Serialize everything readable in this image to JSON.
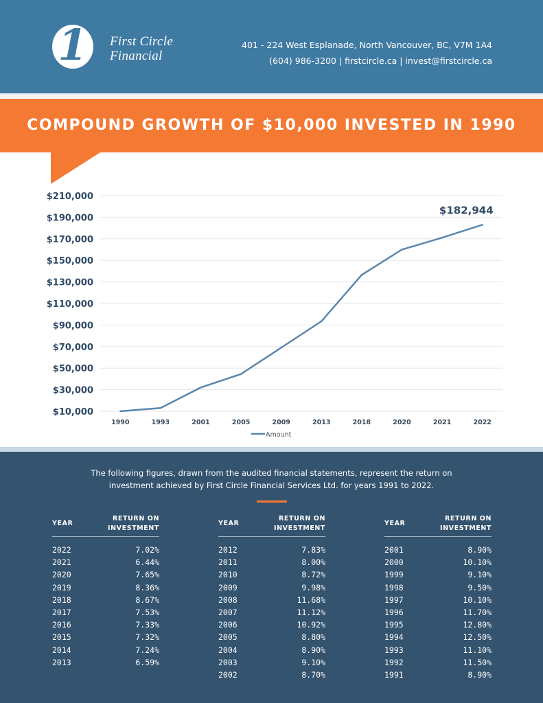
{
  "header": {
    "logo_mark": "1",
    "brand_line1": "First Circle",
    "brand_line2": "Financial",
    "address": "401 - 224 West Esplanade, North Vancouver, BC, V7M 1A4",
    "contact": "(604) 986-3200 | firstcircle.ca | invest@firstcircle.ca"
  },
  "title": "COMPOUND GROWTH OF $10,000 INVESTED IN 1990",
  "colors": {
    "header_blue": "#3f7aa3",
    "orange": "#f47933",
    "navy": "#34536e",
    "line": "#5b86ad"
  },
  "chart_data": {
    "type": "line",
    "categories": [
      "1990",
      "1993",
      "2001",
      "2005",
      "2009",
      "2013",
      "2018",
      "2020",
      "2021",
      "2022"
    ],
    "series": [
      {
        "name": "Amount",
        "values": [
          10000,
          13000,
          32000,
          44500,
          69000,
          93500,
          136500,
          160000,
          171000,
          182944
        ]
      }
    ],
    "y_ticks": [
      "$10,000",
      "$30,000",
      "$50,000",
      "$70,000",
      "$90,000",
      "$110,000",
      "$130,000",
      "$150,000",
      "$170,000",
      "$190,000",
      "$210,000"
    ],
    "ylim": [
      10000,
      210000
    ],
    "grid": true,
    "legend": "bottom",
    "annotation": "$182,944"
  },
  "intro": {
    "line1": "The following figures, drawn from the audited financial statements, represent the return on",
    "line2": "investment achieved by First Circle Financial Services Ltd. for years 1991 to 2022."
  },
  "table_headers": {
    "year": "YEAR",
    "roi1": "RETURN ON",
    "roi2": "INVESTMENT"
  },
  "tables": [
    [
      [
        "2022",
        "7.02%"
      ],
      [
        "2021",
        "6.44%"
      ],
      [
        "2020",
        "7.65%"
      ],
      [
        "2019",
        "8.36%"
      ],
      [
        "2018",
        "8.67%"
      ],
      [
        "2017",
        "7.53%"
      ],
      [
        "2016",
        "7.33%"
      ],
      [
        "2015",
        "7.32%"
      ],
      [
        "2014",
        "7.24%"
      ],
      [
        "2013",
        "6.59%"
      ]
    ],
    [
      [
        "2012",
        "7.83%"
      ],
      [
        "2011",
        "8.00%"
      ],
      [
        "2010",
        "8.72%"
      ],
      [
        "2009",
        "9.98%"
      ],
      [
        "2008",
        "11.68%"
      ],
      [
        "2007",
        "11.12%"
      ],
      [
        "2006",
        "10.92%"
      ],
      [
        "2005",
        "8.80%"
      ],
      [
        "2004",
        "8.90%"
      ],
      [
        "2003",
        "9.10%"
      ],
      [
        "2002",
        "8.70%"
      ]
    ],
    [
      [
        "2001",
        "8.90%"
      ],
      [
        "2000",
        "10.10%"
      ],
      [
        "1999",
        "9.10%"
      ],
      [
        "1998",
        "9.50%"
      ],
      [
        "1997",
        "10.10%"
      ],
      [
        "1996",
        "11.70%"
      ],
      [
        "1995",
        "12.80%"
      ],
      [
        "1994",
        "12.50%"
      ],
      [
        "1993",
        "11.10%"
      ],
      [
        "1992",
        "11.50%"
      ],
      [
        "1991",
        "8.90%"
      ]
    ]
  ]
}
